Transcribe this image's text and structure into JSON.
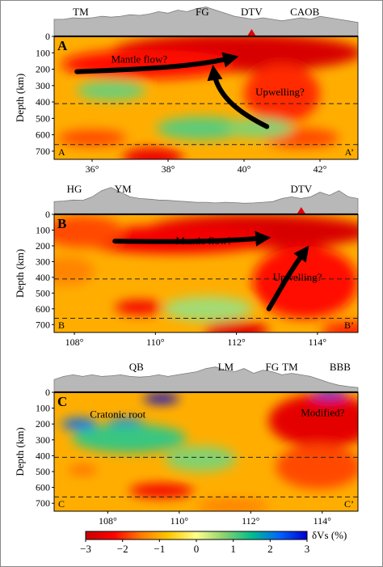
{
  "chart_data": [
    {
      "type": "heatmap",
      "panel_label": "A",
      "ylabel": "Depth (km)",
      "yticks": [
        0,
        100,
        200,
        300,
        400,
        500,
        600,
        700
      ],
      "ylim": [
        750,
        0
      ],
      "xlim": [
        35,
        43
      ],
      "xticks": [
        36,
        38,
        40,
        42
      ],
      "xtick_labels": [
        "36°",
        "38°",
        "40°",
        "42°"
      ],
      "discontinuities_km": [
        410,
        660
      ],
      "section_start_label": "A",
      "section_end_label": "A’",
      "topo_labels": [
        {
          "text": "TM",
          "x": 35.7
        },
        {
          "text": "FG",
          "x": 38.9
        },
        {
          "text": "DTV",
          "x": 40.2,
          "volcano": true
        },
        {
          "text": "CAOB",
          "x": 41.6
        }
      ],
      "annotations": [
        {
          "text": "Mantle flow?",
          "x": 36.5,
          "y": 160
        },
        {
          "text": "Upwelling?",
          "x": 40.3,
          "y": 360
        }
      ],
      "anomalies": [
        {
          "x": 39.8,
          "y": 100,
          "rx": 3.3,
          "ry": 115,
          "v": -2.8
        },
        {
          "x": 37.5,
          "y": 170,
          "rx": 2.3,
          "ry": 90,
          "v": -2.2
        },
        {
          "x": 41.0,
          "y": 350,
          "rx": 1.0,
          "ry": 180,
          "v": -2.0
        },
        {
          "x": 36.0,
          "y": 620,
          "rx": 0.9,
          "ry": 50,
          "v": -1.8
        },
        {
          "x": 37.6,
          "y": 740,
          "rx": 0.8,
          "ry": 60,
          "v": -2.5
        },
        {
          "x": 41.5,
          "y": 620,
          "rx": 1.0,
          "ry": 60,
          "v": -1.8
        },
        {
          "x": 36.5,
          "y": 330,
          "rx": 0.9,
          "ry": 60,
          "v": 0.9
        },
        {
          "x": 38.9,
          "y": 560,
          "rx": 1.2,
          "ry": 70,
          "v": 1.0
        },
        {
          "x": 40.4,
          "y": 560,
          "rx": 0.9,
          "ry": 60,
          "v": 0.8
        }
      ]
    },
    {
      "type": "heatmap",
      "panel_label": "B",
      "ylabel": "Depth (km)",
      "yticks": [
        0,
        100,
        200,
        300,
        400,
        500,
        600,
        700
      ],
      "ylim": [
        750,
        0
      ],
      "xlim": [
        107.5,
        115
      ],
      "xticks": [
        108,
        110,
        112,
        114
      ],
      "xtick_labels": [
        "108°",
        "110°",
        "112°",
        "114°"
      ],
      "discontinuities_km": [
        410,
        660
      ],
      "section_start_label": "B",
      "section_end_label": "B’",
      "topo_labels": [
        {
          "text": "HG",
          "x": 108.0
        },
        {
          "text": "YM",
          "x": 109.2
        },
        {
          "text": "DTV",
          "x": 113.6,
          "volcano": true
        }
      ],
      "annotations": [
        {
          "text": "Mantle flow?",
          "x": 110.5,
          "y": 190
        },
        {
          "text": "Upwelling?",
          "x": 112.9,
          "y": 420
        }
      ],
      "anomalies": [
        {
          "x": 112.5,
          "y": 110,
          "rx": 2.8,
          "ry": 110,
          "v": -2.8
        },
        {
          "x": 110.5,
          "y": 160,
          "rx": 2.4,
          "ry": 90,
          "v": -2.4
        },
        {
          "x": 108.2,
          "y": 110,
          "rx": 1.0,
          "ry": 100,
          "v": -1.8
        },
        {
          "x": 113.7,
          "y": 430,
          "rx": 1.3,
          "ry": 230,
          "v": -2.2
        },
        {
          "x": 109.6,
          "y": 590,
          "rx": 0.6,
          "ry": 45,
          "v": -2.4
        },
        {
          "x": 112.0,
          "y": 740,
          "rx": 0.8,
          "ry": 60,
          "v": -2.6
        },
        {
          "x": 107.8,
          "y": 360,
          "rx": 0.7,
          "ry": 90,
          "v": -1.4
        },
        {
          "x": 111.3,
          "y": 600,
          "rx": 1.1,
          "ry": 80,
          "v": 0.6
        },
        {
          "x": 114.8,
          "y": 740,
          "rx": 0.7,
          "ry": 60,
          "v": -2.0
        }
      ]
    },
    {
      "type": "heatmap",
      "panel_label": "C",
      "ylabel": "Depth (km)",
      "yticks": [
        0,
        100,
        200,
        300,
        400,
        500,
        600,
        700
      ],
      "ylim": [
        750,
        0
      ],
      "xlim": [
        106.5,
        115
      ],
      "xticks": [
        108,
        110,
        112,
        114
      ],
      "xtick_labels": [
        "108°",
        "110°",
        "112°",
        "114°"
      ],
      "discontinuities_km": [
        410,
        660
      ],
      "section_start_label": "C",
      "section_end_label": "C’",
      "topo_labels": [
        {
          "text": "QB",
          "x": 108.8
        },
        {
          "text": "LM",
          "x": 111.3
        },
        {
          "text": "FG",
          "x": 112.6
        },
        {
          "text": "TM",
          "x": 113.1
        },
        {
          "text": "BBB",
          "x": 114.5
        }
      ],
      "annotations": [
        {
          "text": "Cratonic root",
          "x": 107.5,
          "y": 160
        },
        {
          "text": "Modified?",
          "x": 113.4,
          "y": 150
        }
      ],
      "anomalies": [
        {
          "x": 114.0,
          "y": 180,
          "rx": 1.5,
          "ry": 170,
          "v": -2.6
        },
        {
          "x": 113.9,
          "y": 470,
          "rx": 1.2,
          "ry": 140,
          "v": -1.8
        },
        {
          "x": 109.5,
          "y": 620,
          "rx": 0.9,
          "ry": 45,
          "v": -2.4
        },
        {
          "x": 107.3,
          "y": 490,
          "rx": 0.4,
          "ry": 30,
          "v": -1.6
        },
        {
          "x": 111.5,
          "y": 720,
          "rx": 1.0,
          "ry": 50,
          "v": -1.4
        },
        {
          "x": 109.5,
          "y": 40,
          "rx": 0.5,
          "ry": 30,
          "v": 3.0
        },
        {
          "x": 107.2,
          "y": 200,
          "rx": 0.5,
          "ry": 35,
          "v": 2.2
        },
        {
          "x": 108.5,
          "y": 200,
          "rx": 0.5,
          "ry": 35,
          "v": 2.2
        },
        {
          "x": 114.2,
          "y": 10,
          "rx": 0.5,
          "ry": 25,
          "v": 2.6
        },
        {
          "x": 108.6,
          "y": 290,
          "rx": 1.6,
          "ry": 90,
          "v": 1.2
        },
        {
          "x": 110.6,
          "y": 420,
          "rx": 1.0,
          "ry": 80,
          "v": 0.8
        }
      ]
    },
    {
      "type": "colorbar",
      "label": "δVs (%)",
      "range": [
        -3,
        3
      ],
      "ticks": [
        -3,
        -2,
        -1,
        0,
        1,
        2,
        3
      ],
      "tick_labels": [
        "−3",
        "−2",
        "−1",
        "0",
        "1",
        "2",
        "3"
      ],
      "colors": [
        "#c80000",
        "#ff0000",
        "#ff7a00",
        "#ffc800",
        "#ffff8c",
        "#8cd26e",
        "#00be8c",
        "#0064ff",
        "#0000d2"
      ]
    }
  ]
}
